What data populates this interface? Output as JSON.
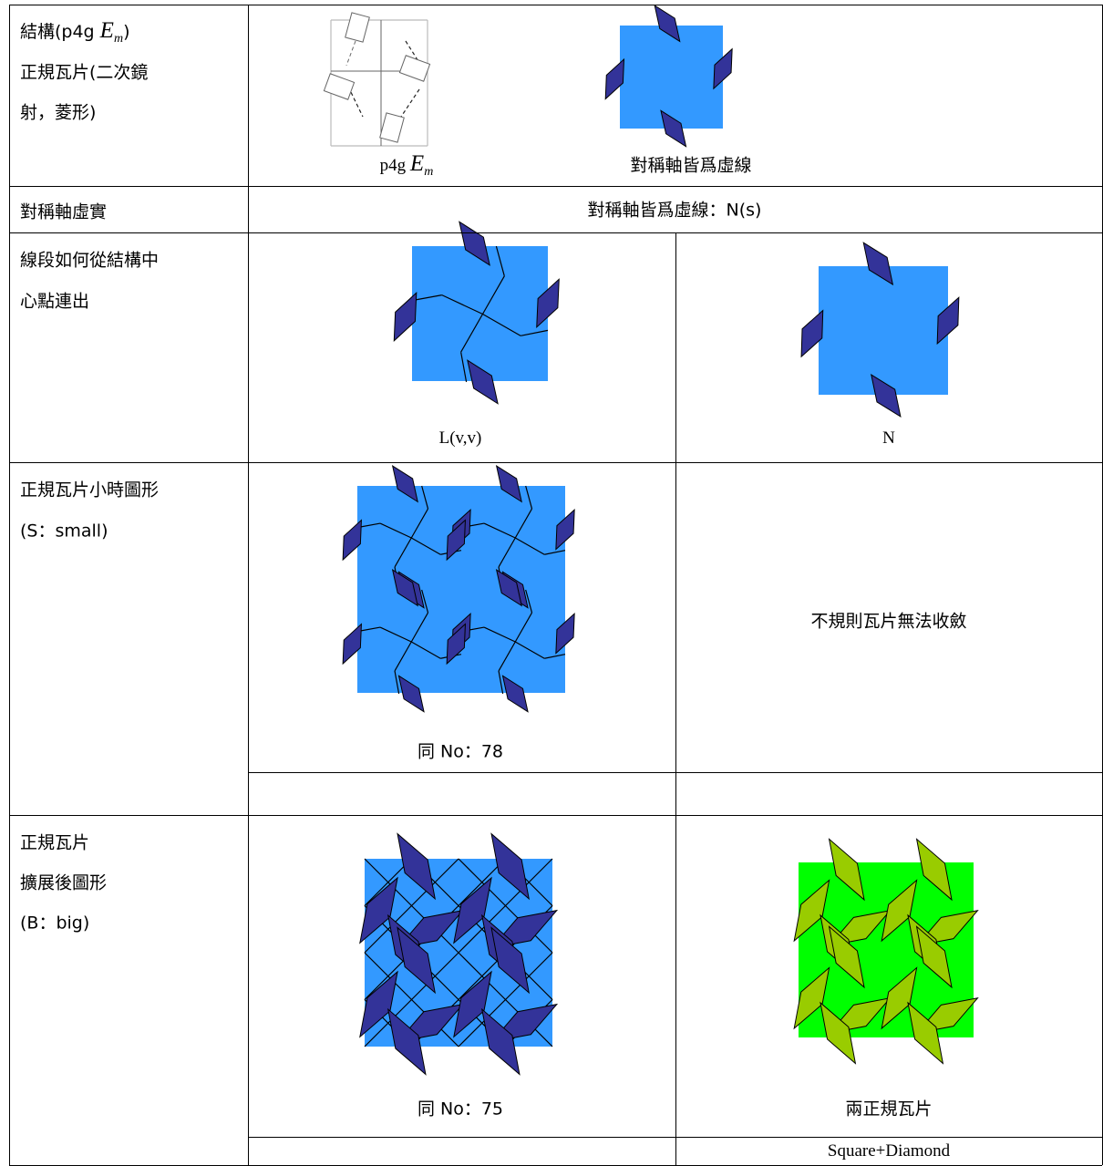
{
  "table": {
    "rows": [
      {
        "header": {
          "title_parts": [
            "結構(p4g ",
            "E",
            "m",
            ")"
          ],
          "lines": [
            "正規瓦片(二次鏡",
            "射，菱形)"
          ]
        },
        "cells": [
          {
            "caption_parts": [
              "p4g ",
              "E",
              "m"
            ]
          },
          {
            "caption": "對稱軸皆爲虛線"
          }
        ]
      },
      {
        "header": {
          "lines": [
            "對稱軸虛實"
          ]
        },
        "cells": [
          {
            "caption": "對稱軸皆爲虛線：N(s)"
          }
        ]
      },
      {
        "header": {
          "lines": [
            "線段如何從結構中",
            "心點連出"
          ]
        },
        "cells": [
          {
            "caption": "L(v,v)"
          },
          {
            "caption": "N"
          }
        ]
      },
      {
        "header": {
          "lines": [
            "正規瓦片小時圖形",
            "(S：small)"
          ]
        },
        "cells": [
          {
            "caption": "同 No：78"
          },
          {
            "text": "不規則瓦片無法收斂"
          }
        ]
      },
      {
        "header": {
          "lines": [
            "正規瓦片",
            "擴展後圖形",
            "(B：big)"
          ]
        },
        "cells": [
          {
            "caption": "同 No：75"
          },
          {
            "caption": "兩正規瓦片"
          }
        ],
        "footer": "Square+Diamond"
      }
    ]
  }
}
